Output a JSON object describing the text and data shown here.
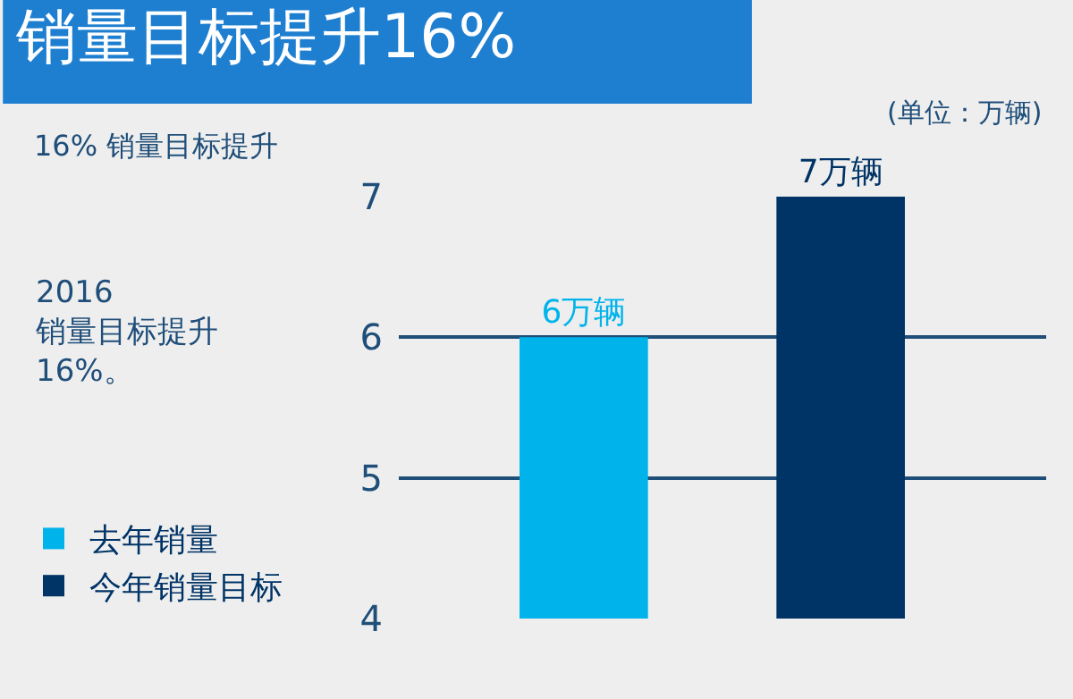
{
  "chart_data": {
    "type": "bar",
    "title": "销量目标提升16%",
    "categories": [
      null,
      null
    ],
    "series": [
      {
        "name": "去年销量",
        "color": "#00b4eb",
        "values": [
          6,
          null
        ],
        "value_labels": [
          "6万辆",
          null
        ]
      },
      {
        "name": "今年销量目标",
        "color": "#003366",
        "values": [
          null,
          7
        ],
        "value_labels": [
          null,
          "7万辆"
        ]
      }
    ],
    "ylim": [
      4,
      7
    ],
    "yticks": [
      4,
      5,
      6,
      7
    ],
    "grid": "y",
    "legend": "bottom left",
    "annotations": [
      "(单位：万辆)",
      "16% 销量目标提升",
      "2016\n销量目标提升\n16%。"
    ]
  }
}
